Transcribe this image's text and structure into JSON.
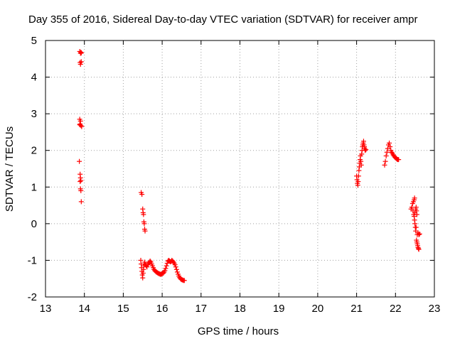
{
  "chart_data": {
    "type": "scatter",
    "title": "Day 355 of 2016, Sidereal Day-to-day VTEC variation (SDTVAR) for receiver ampr",
    "xlabel": "GPS time / hours",
    "ylabel": "SDTVAR / TECUs",
    "xlim": [
      13,
      23
    ],
    "ylim": [
      -2,
      5
    ],
    "xticks": [
      "13",
      "14",
      "15",
      "16",
      "17",
      "18",
      "19",
      "20",
      "21",
      "22",
      "23"
    ],
    "yticks": [
      "-2",
      "-1",
      "0",
      "1",
      "2",
      "3",
      "4",
      "5"
    ],
    "grid": true,
    "marker": "+",
    "series": [
      {
        "name": "SDTVAR",
        "color": "#ff0000",
        "points": [
          [
            13.88,
            4.7
          ],
          [
            13.9,
            4.65
          ],
          [
            13.91,
            4.68
          ],
          [
            13.92,
            4.66
          ],
          [
            13.89,
            4.4
          ],
          [
            13.9,
            4.35
          ],
          [
            13.92,
            4.42
          ],
          [
            13.88,
            2.85
          ],
          [
            13.9,
            2.8
          ],
          [
            13.89,
            2.72
          ],
          [
            13.91,
            2.68
          ],
          [
            13.93,
            2.65
          ],
          [
            13.88,
            2.7
          ],
          [
            13.87,
            1.7
          ],
          [
            13.89,
            1.35
          ],
          [
            13.9,
            1.25
          ],
          [
            13.91,
            1.18
          ],
          [
            13.89,
            1.15
          ],
          [
            13.9,
            0.95
          ],
          [
            13.91,
            0.9
          ],
          [
            13.92,
            0.6
          ],
          [
            15.46,
            0.85
          ],
          [
            15.48,
            0.8
          ],
          [
            15.5,
            0.4
          ],
          [
            15.51,
            0.3
          ],
          [
            15.52,
            0.25
          ],
          [
            15.53,
            0.05
          ],
          [
            15.54,
            0.0
          ],
          [
            15.55,
            -0.15
          ],
          [
            15.56,
            -0.2
          ],
          [
            15.45,
            -1.0
          ],
          [
            15.46,
            -1.1
          ],
          [
            15.47,
            -1.2
          ],
          [
            15.48,
            -1.3
          ],
          [
            15.49,
            -1.4
          ],
          [
            15.5,
            -1.48
          ],
          [
            15.51,
            -1.35
          ],
          [
            15.52,
            -1.25
          ],
          [
            15.53,
            -1.15
          ],
          [
            15.54,
            -1.1
          ],
          [
            15.55,
            -1.05
          ],
          [
            15.57,
            -1.12
          ],
          [
            15.59,
            -1.15
          ],
          [
            15.61,
            -1.18
          ],
          [
            15.63,
            -1.12
          ],
          [
            15.65,
            -1.08
          ],
          [
            15.67,
            -1.05
          ],
          [
            15.69,
            -1.02
          ],
          [
            15.71,
            -1.05
          ],
          [
            15.73,
            -1.1
          ],
          [
            15.75,
            -1.15
          ],
          [
            15.77,
            -1.2
          ],
          [
            15.79,
            -1.25
          ],
          [
            15.81,
            -1.28
          ],
          [
            15.83,
            -1.3
          ],
          [
            15.85,
            -1.32
          ],
          [
            15.87,
            -1.33
          ],
          [
            15.89,
            -1.35
          ],
          [
            15.91,
            -1.36
          ],
          [
            15.93,
            -1.37
          ],
          [
            15.95,
            -1.38
          ],
          [
            15.97,
            -1.38
          ],
          [
            15.99,
            -1.37
          ],
          [
            16.01,
            -1.36
          ],
          [
            16.03,
            -1.35
          ],
          [
            16.05,
            -1.32
          ],
          [
            16.07,
            -1.28
          ],
          [
            16.09,
            -1.22
          ],
          [
            16.11,
            -1.15
          ],
          [
            16.13,
            -1.08
          ],
          [
            16.15,
            -1.02
          ],
          [
            16.17,
            -1.0
          ],
          [
            16.19,
            -1.02
          ],
          [
            16.21,
            -1.04
          ],
          [
            16.23,
            -1.03
          ],
          [
            16.25,
            -1.0
          ],
          [
            16.27,
            -1.02
          ],
          [
            16.29,
            -1.05
          ],
          [
            16.31,
            -1.08
          ],
          [
            16.33,
            -1.12
          ],
          [
            16.35,
            -1.18
          ],
          [
            16.37,
            -1.25
          ],
          [
            16.39,
            -1.32
          ],
          [
            16.41,
            -1.38
          ],
          [
            16.43,
            -1.43
          ],
          [
            16.45,
            -1.47
          ],
          [
            16.47,
            -1.5
          ],
          [
            16.49,
            -1.52
          ],
          [
            16.51,
            -1.53
          ],
          [
            16.53,
            -1.54
          ],
          [
            16.55,
            -1.55
          ],
          [
            16.57,
            -1.55
          ],
          [
            21.0,
            1.3
          ],
          [
            21.01,
            1.2
          ],
          [
            21.02,
            1.1
          ],
          [
            21.03,
            1.05
          ],
          [
            21.04,
            1.15
          ],
          [
            21.05,
            1.3
          ],
          [
            21.06,
            1.45
          ],
          [
            21.07,
            1.55
          ],
          [
            21.08,
            1.65
          ],
          [
            21.09,
            1.75
          ],
          [
            21.1,
            1.85
          ],
          [
            21.11,
            1.7
          ],
          [
            21.12,
            1.6
          ],
          [
            21.13,
            1.9
          ],
          [
            21.14,
            2.0
          ],
          [
            21.15,
            2.1
          ],
          [
            21.16,
            2.15
          ],
          [
            21.17,
            2.2
          ],
          [
            21.18,
            2.25
          ],
          [
            21.19,
            2.15
          ],
          [
            21.2,
            2.1
          ],
          [
            21.21,
            2.05
          ],
          [
            21.22,
            2.0
          ],
          [
            21.24,
            2.02
          ],
          [
            21.72,
            1.6
          ],
          [
            21.74,
            1.7
          ],
          [
            21.76,
            1.85
          ],
          [
            21.78,
            1.95
          ],
          [
            21.8,
            2.05
          ],
          [
            21.82,
            2.15
          ],
          [
            21.84,
            2.2
          ],
          [
            21.86,
            2.1
          ],
          [
            21.88,
            2.0
          ],
          [
            21.9,
            1.95
          ],
          [
            21.92,
            1.92
          ],
          [
            21.94,
            1.88
          ],
          [
            21.96,
            1.85
          ],
          [
            21.98,
            1.82
          ],
          [
            22.0,
            1.8
          ],
          [
            22.02,
            1.78
          ],
          [
            22.04,
            1.76
          ],
          [
            22.06,
            1.75
          ],
          [
            22.08,
            1.75
          ],
          [
            22.4,
            0.4
          ],
          [
            22.42,
            0.45
          ],
          [
            22.44,
            0.55
          ],
          [
            22.46,
            0.6
          ],
          [
            22.48,
            0.65
          ],
          [
            22.49,
            0.7
          ],
          [
            22.45,
            0.35
          ],
          [
            22.47,
            0.25
          ],
          [
            22.48,
            0.2
          ],
          [
            22.49,
            0.1
          ],
          [
            22.5,
            0.0
          ],
          [
            22.51,
            -0.1
          ],
          [
            22.52,
            -0.2
          ],
          [
            22.5,
            0.3
          ],
          [
            22.52,
            0.4
          ],
          [
            22.53,
            0.45
          ],
          [
            22.54,
            0.35
          ],
          [
            22.55,
            0.25
          ],
          [
            22.54,
            -0.45
          ],
          [
            22.55,
            -0.5
          ],
          [
            22.56,
            -0.55
          ],
          [
            22.57,
            -0.6
          ],
          [
            22.58,
            -0.65
          ],
          [
            22.59,
            -0.68
          ],
          [
            22.6,
            -0.7
          ],
          [
            22.56,
            -0.3
          ],
          [
            22.58,
            -0.25
          ],
          [
            22.6,
            -0.3
          ],
          [
            22.62,
            -0.28
          ],
          [
            22.53,
            -0.1
          ]
        ]
      }
    ]
  }
}
